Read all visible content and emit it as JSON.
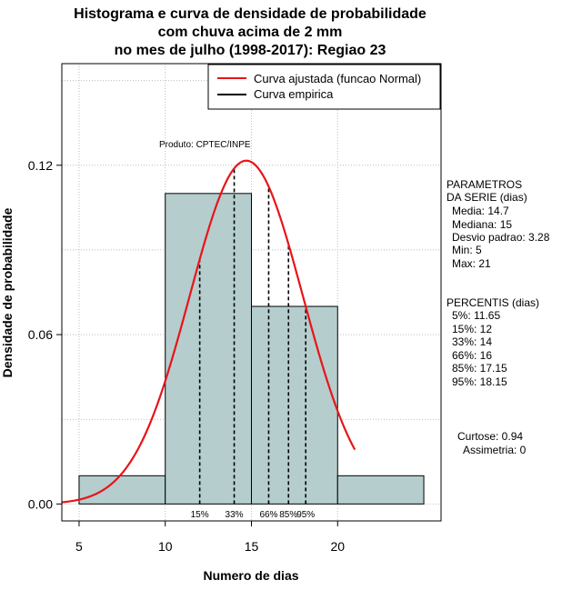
{
  "chart_data": {
    "type": "histogram",
    "title": [
      "Histograma e curva de densidade de probabilidade",
      "com chuva acima de 2 mm",
      "no mes de julho (1998-2017): Regiao 23"
    ],
    "xlabel": "Numero de dias",
    "ylabel": "Densidade de probabilidade",
    "xlim": [
      4.0,
      26.0
    ],
    "ylim": [
      -0.006,
      0.156
    ],
    "xticks": [
      5,
      10,
      15,
      20
    ],
    "yticks": [
      0.0,
      0.06,
      0.12
    ],
    "ytick_labels": [
      "0.00",
      "0.06",
      "0.12"
    ],
    "grid": true,
    "bins": [
      {
        "start": 5,
        "end": 10,
        "density": 0.01
      },
      {
        "start": 10,
        "end": 15,
        "density": 0.11
      },
      {
        "start": 15,
        "end": 20,
        "density": 0.07
      },
      {
        "start": 20,
        "end": 25,
        "density": 0.01
      }
    ],
    "normal_curve": {
      "mean": 14.7,
      "sd": 3.28,
      "from": 4.0,
      "to": 21.0
    },
    "percentiles": [
      {
        "label": "15%",
        "x": 12.0
      },
      {
        "label": "33%",
        "x": 14.0
      },
      {
        "label": "66%",
        "x": 16.0
      },
      {
        "label": "85%",
        "x": 17.15
      },
      {
        "label": "95%",
        "x": 18.15
      }
    ],
    "legend": {
      "position": "top-right",
      "items": [
        {
          "label": "Curva ajustada (funcao Normal)",
          "color": "#e8141a"
        },
        {
          "label": "Curva empirica",
          "color": "#000000"
        }
      ]
    },
    "annotation": "Produto: CPTEC/INPE",
    "colors": {
      "bar_fill": "#b5cdcd",
      "curve": "#e8141a",
      "grid": "#bcbcbc"
    }
  },
  "side_panel": {
    "params_title": "PARAMETROS",
    "params_subtitle": "DA SERIE (dias)",
    "params": [
      "Media: 14.7",
      "Mediana: 15",
      "Desvio padrao: 3.28",
      "Min: 5",
      "Max: 21"
    ],
    "percentis_title": "PERCENTIS (dias)",
    "percentis": [
      "5%: 11.65",
      "15%: 12",
      "33%: 14",
      "66%: 16",
      "85%: 17.15",
      "95%: 18.15"
    ],
    "curtose": "Curtose: 0.94",
    "assimetria": "Assimetria: 0"
  }
}
